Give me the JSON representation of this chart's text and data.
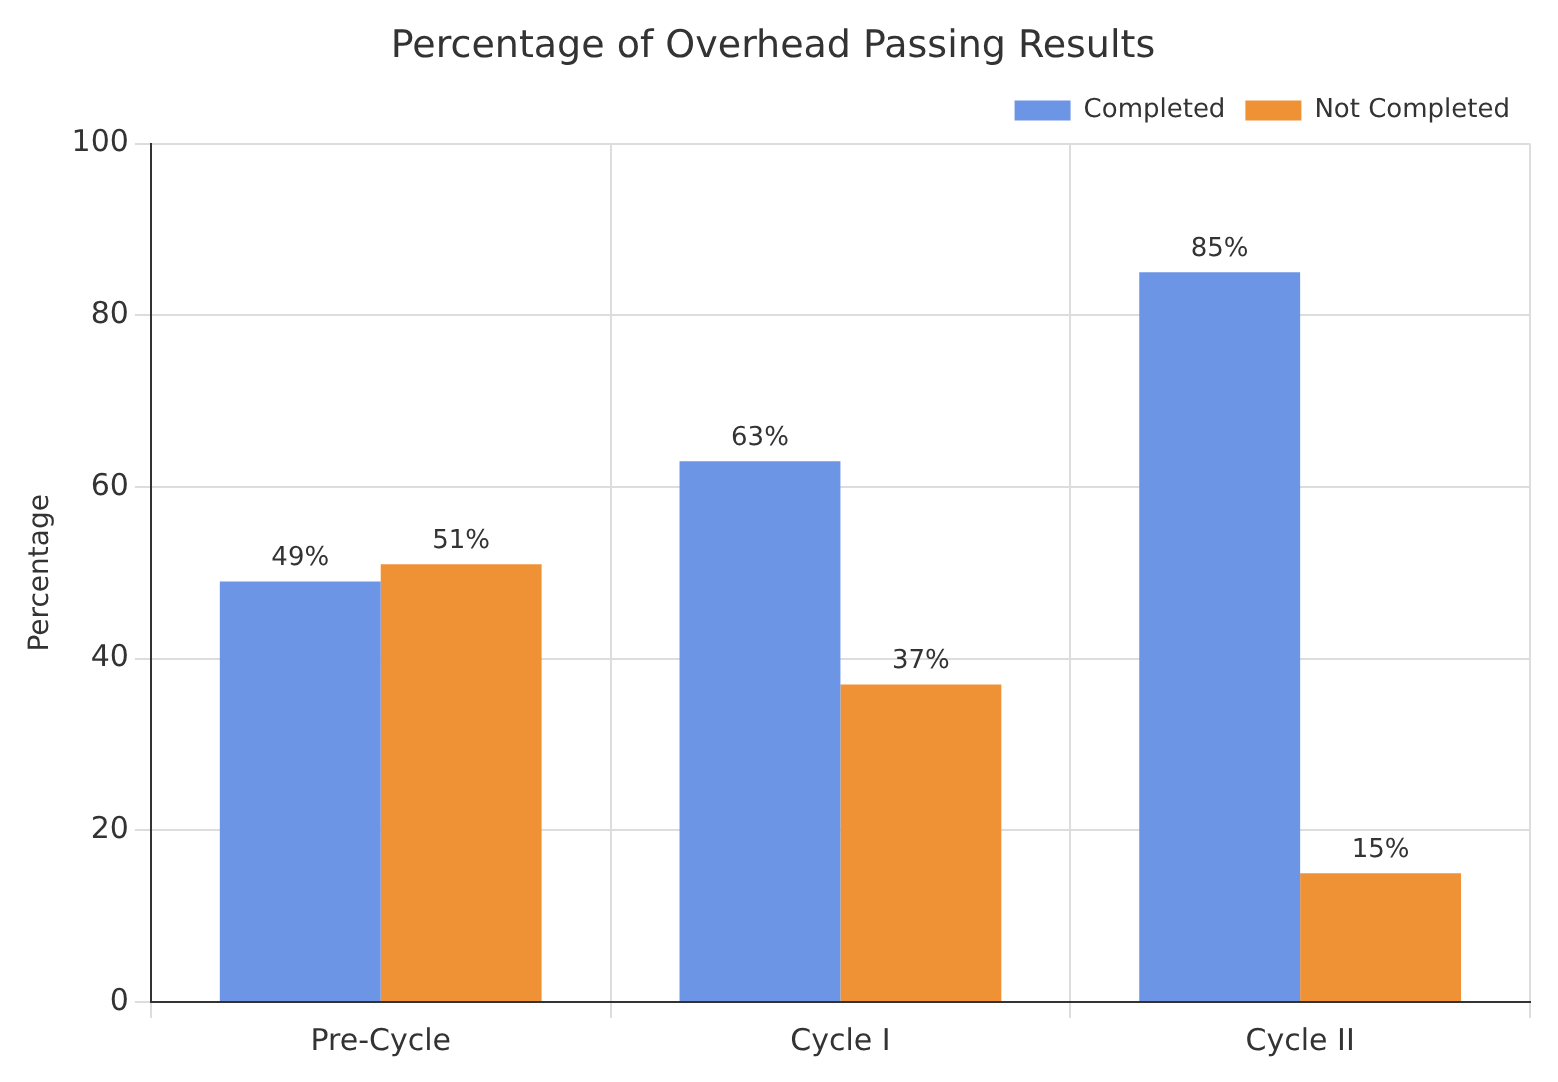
{
  "chart_data": {
    "type": "bar",
    "title": "Percentage of Overhead Passing Results",
    "ylabel": "Percentage",
    "categories": [
      "Pre-Cycle",
      "Cycle I",
      "Cycle II"
    ],
    "series": [
      {
        "name": "Completed",
        "color": "#6d95e5",
        "values": [
          49,
          63,
          85
        ],
        "value_labels": [
          "49%",
          "63%",
          "85%"
        ]
      },
      {
        "name": "Not Completed",
        "color": "#ef9236",
        "values": [
          51,
          37,
          15
        ],
        "value_labels": [
          "51%",
          "37%",
          "15%"
        ]
      }
    ],
    "ylim": [
      0,
      100
    ],
    "yticks": [
      0,
      20,
      40,
      60,
      80,
      100
    ],
    "grid": true,
    "legend": "top right"
  }
}
